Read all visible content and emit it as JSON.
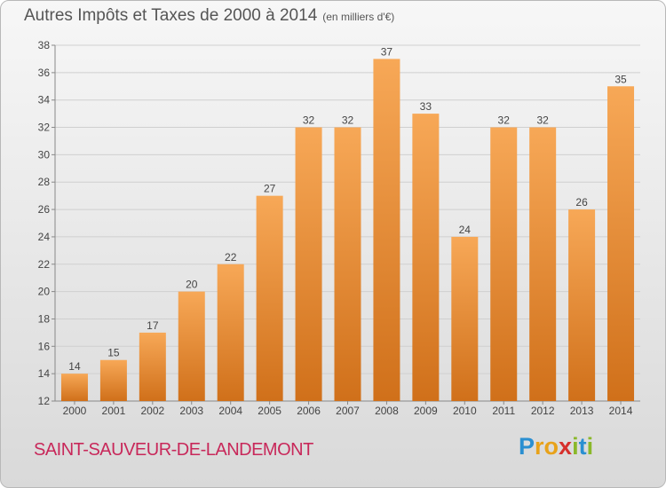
{
  "title": "Autres Impôts et Taxes de 2000 à 2014",
  "subtitle": "(en milliers d'€)",
  "town": "SAINT-SAUVEUR-DE-LANDEMONT",
  "logo": {
    "letters": [
      "P",
      "r",
      "o",
      "x",
      "i",
      "t",
      "i"
    ],
    "colors": [
      "#2a8fd1",
      "#e8a21a",
      "#e8a21a",
      "#d6302c",
      "#8ab82a",
      "#2a8fd1",
      "#8ab82a"
    ]
  },
  "colors": {
    "bar_top": "#f7a857",
    "bar_bottom": "#d0701a",
    "grid": "#cfcfcf",
    "text": "#444444"
  },
  "chart_data": {
    "type": "bar",
    "title": "Autres Impôts et Taxes de 2000 à 2014",
    "subtitle": "(en milliers d'€)",
    "categories": [
      "2000",
      "2001",
      "2002",
      "2003",
      "2004",
      "2005",
      "2006",
      "2007",
      "2008",
      "2009",
      "2010",
      "2011",
      "2012",
      "2013",
      "2014"
    ],
    "values": [
      14,
      15,
      17,
      20,
      22,
      27,
      32,
      32,
      37,
      33,
      24,
      32,
      32,
      26,
      35
    ],
    "data_labels": [
      "14",
      "15",
      "17",
      "20",
      "22",
      "27",
      "32",
      "32",
      "37",
      "33",
      "24",
      "32",
      "32",
      "26",
      "35"
    ],
    "ylim": [
      12,
      38
    ],
    "yticks": [
      12,
      14,
      16,
      18,
      20,
      22,
      24,
      26,
      28,
      30,
      32,
      34,
      36,
      38
    ],
    "grid": true,
    "xlabel": "",
    "ylabel": ""
  }
}
